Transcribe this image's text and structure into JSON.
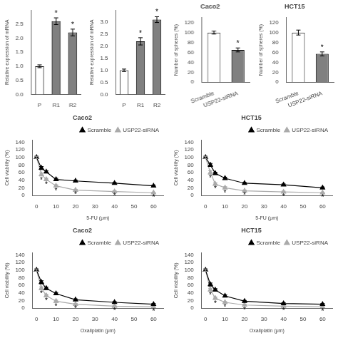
{
  "chart_data": [
    {
      "type": "bar",
      "categories": [
        "P",
        "R1",
        "R2"
      ],
      "values": [
        1.0,
        2.6,
        2.2
      ],
      "errors": [
        0.05,
        0.12,
        0.12
      ],
      "colors": [
        "white",
        "#808080",
        "#808080"
      ],
      "ylabel": "Relative expression of mRNA",
      "ylim": [
        0,
        3.0
      ],
      "yticks": [
        {
          "value": 0,
          "label": "0.0"
        },
        0.5,
        {
          "value": 1,
          "label": "1.0"
        },
        1.5,
        {
          "value": 2,
          "label": "2.0"
        },
        2.5
      ],
      "grid": false,
      "annotations": [
        {
          "x": "R1",
          "text": "*"
        },
        {
          "x": "R2",
          "text": "*"
        }
      ]
    },
    {
      "type": "bar",
      "categories": [
        "P",
        "R1",
        "R2"
      ],
      "values": [
        1.0,
        2.2,
        3.1
      ],
      "errors": [
        0.05,
        0.15,
        0.12
      ],
      "colors": [
        "white",
        "#808080",
        "#808080"
      ],
      "ylabel": "Relative expression of mRNA",
      "ylim": [
        0,
        3.5
      ],
      "yticks": [
        {
          "value": 0,
          "label": "0.0"
        },
        0.5,
        {
          "value": 1,
          "label": "1.0"
        },
        1.5,
        {
          "value": 2,
          "label": "2.0"
        },
        2.5,
        {
          "value": 3,
          "label": "3.0"
        }
      ],
      "grid": false,
      "annotations": [
        {
          "x": "R1",
          "text": "*"
        },
        {
          "x": "R2",
          "text": "*"
        }
      ]
    },
    {
      "type": "bar",
      "title": "Caco2",
      "categories": [
        "Scramble",
        "USP22-siRNA"
      ],
      "values": [
        100,
        65
      ],
      "errors": [
        3,
        4
      ],
      "colors": [
        "white",
        "#808080"
      ],
      "ylabel": "Number of spheres (%)",
      "ylim": [
        0,
        130
      ],
      "yticks": [
        0,
        20,
        40,
        60,
        80,
        100,
        120
      ],
      "grid": false,
      "annotations": [
        {
          "x": "USP22-siRNA",
          "text": "*"
        }
      ]
    },
    {
      "type": "bar",
      "title": "HCT15",
      "categories": [
        "Scramble",
        "USP22-siRNA"
      ],
      "values": [
        100,
        57
      ],
      "errors": [
        5,
        4
      ],
      "colors": [
        "white",
        "#808080"
      ],
      "ylabel": "Number of spheres (%)",
      "ylim": [
        0,
        130
      ],
      "yticks": [
        0,
        20,
        40,
        60,
        80,
        100,
        120
      ],
      "grid": false,
      "annotations": [
        {
          "x": "USP22-siRNA",
          "text": "*"
        }
      ]
    },
    {
      "type": "line",
      "title": "Caco2",
      "xlabel": "5-FU (μm)",
      "ylabel": "Cell viability (%)",
      "xlim": [
        -2,
        65
      ],
      "ylim": [
        0,
        145
      ],
      "xticks": [
        0,
        10,
        20,
        30,
        40,
        50,
        60
      ],
      "yticks": [
        0,
        20,
        40,
        60,
        80,
        100,
        120,
        140
      ],
      "grid": false,
      "legend": "upper right",
      "x": [
        0,
        2.5,
        5,
        10,
        20,
        40,
        60
      ],
      "series": [
        {
          "name": "Scramble",
          "color": "black",
          "marker": "triangle",
          "line_style": "solid",
          "values": [
            100,
            72,
            62,
            42,
            38,
            32,
            25
          ],
          "errors": [
            3,
            4,
            3,
            3,
            2,
            2,
            2
          ]
        },
        {
          "name": "USP22-siRNA",
          "color": "#aaaaaa",
          "marker": "triangle",
          "line_style": "solid",
          "values": [
            100,
            55,
            42,
            25,
            14,
            10,
            7
          ],
          "errors": [
            3,
            4,
            3,
            3,
            2,
            2,
            1
          ]
        }
      ],
      "annotations": [
        {
          "x": 2.5,
          "series": "USP22-siRNA",
          "text": "*"
        },
        {
          "x": 5,
          "series": "USP22-siRNA",
          "text": "*"
        },
        {
          "x": 10,
          "series": "USP22-siRNA",
          "text": "*"
        },
        {
          "x": 20,
          "series": "USP22-siRNA",
          "text": "*"
        },
        {
          "x": 40,
          "series": "USP22-siRNA",
          "text": "*"
        },
        {
          "x": 60,
          "series": "USP22-siRNA",
          "text": "*"
        }
      ]
    },
    {
      "type": "line",
      "title": "HCT15",
      "xlabel": "5-FU (μm)",
      "ylabel": "Cell viability (%)",
      "xlim": [
        -2,
        65
      ],
      "ylim": [
        0,
        145
      ],
      "xticks": [
        0,
        10,
        20,
        30,
        40,
        50,
        60
      ],
      "yticks": [
        0,
        20,
        40,
        60,
        80,
        100,
        120,
        140
      ],
      "grid": false,
      "legend": "upper right",
      "x": [
        0,
        2.5,
        5,
        10,
        20,
        40,
        60
      ],
      "series": [
        {
          "name": "Scramble",
          "color": "black",
          "marker": "triangle",
          "line_style": "solid",
          "values": [
            100,
            80,
            58,
            45,
            32,
            28,
            20
          ],
          "errors": [
            3,
            4,
            3,
            3,
            2,
            2,
            2
          ]
        },
        {
          "name": "USP22-siRNA",
          "color": "#aaaaaa",
          "marker": "triangle",
          "line_style": "solid",
          "values": [
            100,
            60,
            30,
            20,
            12,
            9,
            7
          ],
          "errors": [
            3,
            5,
            3,
            3,
            2,
            2,
            1
          ]
        }
      ],
      "annotations": [
        {
          "x": 2.5,
          "series": "USP22-siRNA",
          "text": "*"
        },
        {
          "x": 5,
          "series": "USP22-siRNA",
          "text": "*"
        },
        {
          "x": 10,
          "series": "USP22-siRNA",
          "text": "*"
        },
        {
          "x": 20,
          "series": "USP22-siRNA",
          "text": "*"
        },
        {
          "x": 40,
          "series": "USP22-siRNA",
          "text": "*"
        },
        {
          "x": 60,
          "series": "USP22-siRNA",
          "text": "*"
        }
      ]
    },
    {
      "type": "line",
      "title": "Caco2",
      "xlabel": "Oxaliplatin (μm)",
      "ylabel": "Cell viability (%)",
      "xlim": [
        -2,
        65
      ],
      "ylim": [
        0,
        145
      ],
      "xticks": [
        0,
        10,
        20,
        30,
        40,
        50,
        60
      ],
      "yticks": [
        0,
        20,
        40,
        60,
        80,
        100,
        120,
        140
      ],
      "grid": false,
      "legend": "upper right",
      "x": [
        0,
        2.5,
        5,
        10,
        20,
        40,
        60
      ],
      "series": [
        {
          "name": "Scramble",
          "color": "black",
          "marker": "triangle",
          "line_style": "solid",
          "values": [
            100,
            68,
            52,
            38,
            22,
            15,
            10
          ],
          "errors": [
            3,
            4,
            3,
            3,
            2,
            2,
            2
          ]
        },
        {
          "name": "USP22-siRNA",
          "color": "#aaaaaa",
          "marker": "triangle",
          "line_style": "solid",
          "values": [
            100,
            52,
            33,
            18,
            10,
            5,
            3
          ],
          "errors": [
            3,
            4,
            3,
            3,
            2,
            1,
            1
          ]
        }
      ],
      "annotations": [
        {
          "x": 2.5,
          "series": "USP22-siRNA",
          "text": "*"
        },
        {
          "x": 5,
          "series": "USP22-siRNA",
          "text": "*"
        },
        {
          "x": 10,
          "series": "USP22-siRNA",
          "text": "*"
        },
        {
          "x": 20,
          "series": "USP22-siRNA",
          "text": "*"
        },
        {
          "x": 40,
          "series": "USP22-siRNA",
          "text": "*"
        },
        {
          "x": 60,
          "series": "USP22-siRNA",
          "text": "*"
        }
      ]
    },
    {
      "type": "line",
      "title": "HCT15",
      "xlabel": "Oxaliplatin (μm)",
      "ylabel": "Cell viability (%)",
      "xlim": [
        -2,
        65
      ],
      "ylim": [
        0,
        145
      ],
      "xticks": [
        0,
        10,
        20,
        30,
        40,
        50,
        60
      ],
      "yticks": [
        0,
        20,
        40,
        60,
        80,
        100,
        120,
        140
      ],
      "grid": false,
      "legend": "upper right",
      "x": [
        0,
        2.5,
        5,
        10,
        20,
        40,
        60
      ],
      "series": [
        {
          "name": "Scramble",
          "color": "black",
          "marker": "triangle",
          "line_style": "solid",
          "values": [
            100,
            62,
            48,
            32,
            18,
            12,
            10
          ],
          "errors": [
            3,
            4,
            3,
            3,
            2,
            2,
            2
          ]
        },
        {
          "name": "USP22-siRNA",
          "color": "#aaaaaa",
          "marker": "triangle",
          "line_style": "solid",
          "values": [
            100,
            48,
            26,
            15,
            8,
            5,
            3
          ],
          "errors": [
            3,
            4,
            3,
            2,
            2,
            1,
            1
          ]
        }
      ],
      "annotations": [
        {
          "x": 2.5,
          "series": "USP22-siRNA",
          "text": "*"
        },
        {
          "x": 5,
          "series": "USP22-siRNA",
          "text": "*"
        },
        {
          "x": 10,
          "series": "USP22-siRNA",
          "text": "*"
        },
        {
          "x": 20,
          "series": "USP22-siRNA",
          "text": "*"
        },
        {
          "x": 40,
          "series": "USP22-siRNA",
          "text": "*"
        },
        {
          "x": 60,
          "series": "USP22-siRNA",
          "text": "*"
        }
      ]
    }
  ]
}
